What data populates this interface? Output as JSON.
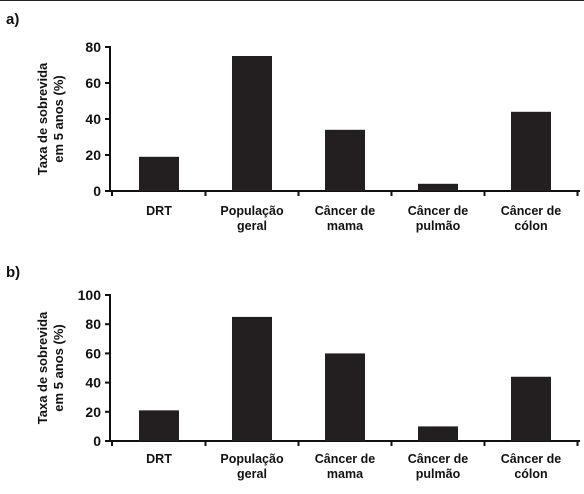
{
  "chart_data": [
    {
      "panel_label": "a)",
      "type": "bar",
      "ylabel": "Taxa de sobrevida\nem 5 anos (%)",
      "categories": [
        "DRT",
        "População\ngeral",
        "Câncer de\nmama",
        "Câncer de\npulmão",
        "Câncer de\ncólon"
      ],
      "values": [
        19,
        75,
        34,
        4,
        44
      ],
      "ylim": [
        0,
        80
      ],
      "yticks": [
        0,
        20,
        40,
        60,
        80
      ],
      "bar_color": "#231f20",
      "grid": false
    },
    {
      "panel_label": "b)",
      "type": "bar",
      "ylabel": "Taxa de sobrevida\nem 5 anos (%)",
      "categories": [
        "DRT",
        "População\ngeral",
        "Câncer de\nmama",
        "Câncer de\npulmão",
        "Câncer de\ncólon"
      ],
      "values": [
        21,
        85,
        60,
        10,
        44
      ],
      "ylim": [
        0,
        100
      ],
      "yticks": [
        0,
        20,
        40,
        60,
        80,
        100
      ],
      "bar_color": "#231f20",
      "grid": false
    }
  ]
}
